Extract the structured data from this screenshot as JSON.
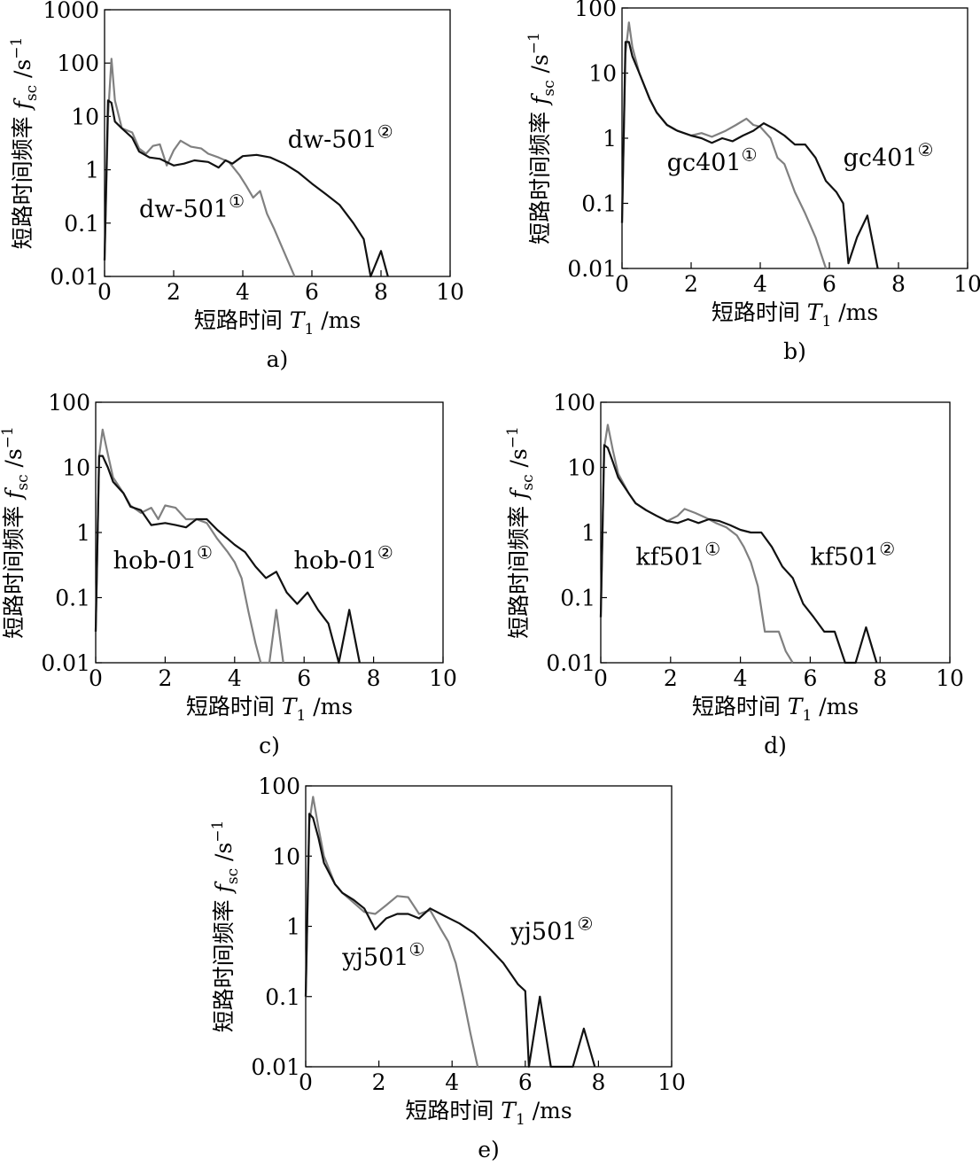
{
  "colors": {
    "series1": "#808080",
    "series2": "#111111",
    "axis": "#000000"
  },
  "chart_data": [
    {
      "type": "line",
      "caption": "a)",
      "xlabel_text": "短路时间",
      "xlabel_sym": "T",
      "xlabel_sub": "1",
      "xlabel_unit": "/ms",
      "ylabel_text": "短路时间频率",
      "ylabel_sym": "f",
      "ylabel_sub": "sc",
      "ylabel_unit": "/s",
      "ylabel_sup": "−1",
      "xlim": [
        0,
        10
      ],
      "ylim": [
        0.01,
        1000
      ],
      "ylog": true,
      "x_ticks": [
        0,
        2,
        4,
        6,
        8,
        10
      ],
      "x_tick_labels": [
        "0",
        "2",
        "4",
        "6",
        "8",
        "10"
      ],
      "y_ticks": [
        0.01,
        0.1,
        1,
        10,
        100,
        1000
      ],
      "y_tick_labels": [
        "0.01",
        "0.1",
        "1",
        "10",
        "100",
        "1000"
      ],
      "series": [
        {
          "name": "dw-501①",
          "label_text": "dw-501",
          "label_mark": "①",
          "label_at": [
            1.0,
            0.13
          ],
          "x": [
            0,
            0.1,
            0.2,
            0.3,
            0.5,
            0.8,
            1.0,
            1.2,
            1.4,
            1.6,
            1.8,
            2.0,
            2.2,
            2.5,
            2.8,
            3.0,
            3.3,
            3.6,
            3.9,
            4.1,
            4.3,
            4.5,
            4.7,
            4.9,
            5.1,
            5.3,
            5.5
          ],
          "y": [
            0.02,
            10,
            120,
            20,
            6,
            5,
            2.5,
            2,
            2.8,
            3,
            1.2,
            2.3,
            3.5,
            2.7,
            2.5,
            2,
            1.7,
            1.4,
            0.8,
            0.5,
            0.3,
            0.4,
            0.15,
            0.08,
            0.04,
            0.02,
            0.01
          ]
        },
        {
          "name": "dw-501②",
          "label_text": "dw-501",
          "label_mark": "②",
          "label_at": [
            5.3,
            2.6
          ],
          "x": [
            0,
            0.1,
            0.2,
            0.3,
            0.5,
            0.8,
            1.0,
            1.3,
            1.6,
            2.0,
            2.3,
            2.6,
            3.0,
            3.3,
            3.5,
            3.7,
            4.0,
            4.4,
            4.8,
            5.2,
            5.6,
            6.0,
            6.4,
            6.8,
            7.2,
            7.5,
            7.7,
            8.0,
            8.2
          ],
          "y": [
            0.02,
            20,
            18,
            8,
            6,
            4,
            2.2,
            1.7,
            1.6,
            1.2,
            1.3,
            1.5,
            1.4,
            1.1,
            1.5,
            1.3,
            1.8,
            1.9,
            1.7,
            1.3,
            0.9,
            0.55,
            0.35,
            0.22,
            0.1,
            0.05,
            0.01,
            0.03,
            0.01
          ]
        }
      ]
    },
    {
      "type": "line",
      "caption": "b)",
      "xlabel_text": "短路时间",
      "xlabel_sym": "T",
      "xlabel_sub": "1",
      "xlabel_unit": "/ms",
      "ylabel_text": "短路时间频率",
      "ylabel_sym": "f",
      "ylabel_sub": "sc",
      "ylabel_unit": "/s",
      "ylabel_sup": "−1",
      "xlim": [
        0,
        10
      ],
      "ylim": [
        0.01,
        100
      ],
      "ylog": true,
      "x_ticks": [
        0,
        2,
        4,
        6,
        8,
        10
      ],
      "x_tick_labels": [
        "0",
        "2",
        "4",
        "6",
        "8",
        "10"
      ],
      "y_ticks": [
        0.01,
        0.1,
        1,
        10,
        100
      ],
      "y_tick_labels": [
        "0.01",
        "0.1",
        "1",
        "10",
        "100"
      ],
      "series": [
        {
          "name": "gc401①",
          "label_text": "gc401",
          "label_mark": "①",
          "label_at": [
            1.3,
            0.32
          ],
          "x": [
            0,
            0.1,
            0.2,
            0.3,
            0.5,
            0.8,
            1.0,
            1.3,
            1.6,
            2.0,
            2.3,
            2.6,
            3.0,
            3.3,
            3.6,
            3.8,
            4.0,
            4.3,
            4.5,
            4.7,
            5.0,
            5.3,
            5.6,
            5.9
          ],
          "y": [
            0.05,
            20,
            60,
            25,
            10,
            4,
            2.5,
            1.6,
            1.3,
            1.1,
            1.2,
            1.05,
            1.3,
            1.6,
            2,
            1.6,
            1.5,
            1.0,
            0.5,
            0.4,
            0.15,
            0.07,
            0.03,
            0.01
          ]
        },
        {
          "name": "gc401②",
          "label_text": "gc401",
          "label_mark": "②",
          "label_at": [
            6.4,
            0.38
          ],
          "x": [
            0,
            0.1,
            0.2,
            0.3,
            0.5,
            0.8,
            1.0,
            1.3,
            1.6,
            2.0,
            2.3,
            2.6,
            2.9,
            3.2,
            3.5,
            3.8,
            4.1,
            4.4,
            4.7,
            5.0,
            5.3,
            5.6,
            5.9,
            6.2,
            6.4,
            6.55,
            6.8,
            7.1,
            7.4
          ],
          "y": [
            0.05,
            30,
            30,
            18,
            10,
            4,
            2.5,
            1.6,
            1.3,
            1.1,
            1.0,
            0.85,
            1.0,
            0.9,
            1.1,
            1.3,
            1.7,
            1.4,
            1.1,
            0.8,
            0.8,
            0.5,
            0.22,
            0.15,
            0.1,
            0.012,
            0.03,
            0.065,
            0.01
          ]
        }
      ]
    },
    {
      "type": "line",
      "caption": "c)",
      "xlabel_text": "短路时间",
      "xlabel_sym": "T",
      "xlabel_sub": "1",
      "xlabel_unit": "/ms",
      "ylabel_text": "短路时间频率",
      "ylabel_sym": "f",
      "ylabel_sub": "sc",
      "ylabel_unit": "/s",
      "ylabel_sup": "−1",
      "xlim": [
        0,
        10
      ],
      "ylim": [
        0.01,
        100
      ],
      "ylog": true,
      "x_ticks": [
        0,
        2,
        4,
        6,
        8,
        10
      ],
      "x_tick_labels": [
        "0",
        "2",
        "4",
        "6",
        "8",
        "10"
      ],
      "y_ticks": [
        0.01,
        0.1,
        1,
        10,
        100
      ],
      "y_tick_labels": [
        "0.01",
        "0.1",
        "1",
        "10",
        "100"
      ],
      "series": [
        {
          "name": "hob-01①",
          "label_text": "hob-01",
          "label_mark": "①",
          "label_at": [
            0.5,
            0.28
          ],
          "x": [
            0,
            0.1,
            0.2,
            0.35,
            0.5,
            0.8,
            1.0,
            1.3,
            1.6,
            1.8,
            2.0,
            2.3,
            2.6,
            2.9,
            3.2,
            3.5,
            3.8,
            4.0,
            4.2,
            4.4,
            4.6,
            4.75,
            5.0,
            5.2,
            5.4
          ],
          "y": [
            0.03,
            15,
            38,
            16,
            7,
            4,
            2.6,
            2,
            2.4,
            1.6,
            2.6,
            2.4,
            1.6,
            1.6,
            1.4,
            0.8,
            0.5,
            0.35,
            0.2,
            0.06,
            0.02,
            0.01,
            0.01,
            0.065,
            0.01
          ]
        },
        {
          "name": "hob-01②",
          "label_text": "hob-01",
          "label_mark": "②",
          "label_at": [
            5.7,
            0.28
          ],
          "x": [
            0,
            0.1,
            0.2,
            0.35,
            0.5,
            0.8,
            1.0,
            1.3,
            1.6,
            2.0,
            2.3,
            2.6,
            2.9,
            3.2,
            3.5,
            3.8,
            4.0,
            4.3,
            4.6,
            4.9,
            5.2,
            5.5,
            5.8,
            6.1,
            6.4,
            6.7,
            7.0,
            7.3,
            7.6
          ],
          "y": [
            0.03,
            15,
            15,
            10,
            6,
            4,
            2.5,
            2.2,
            1.3,
            1.4,
            1.3,
            1.2,
            1.6,
            1.6,
            1.1,
            0.8,
            0.65,
            0.5,
            0.3,
            0.2,
            0.25,
            0.12,
            0.08,
            0.12,
            0.065,
            0.04,
            0.01,
            0.065,
            0.01
          ]
        }
      ]
    },
    {
      "type": "line",
      "caption": "d)",
      "xlabel_text": "短路时间",
      "xlabel_sym": "T",
      "xlabel_sub": "1",
      "xlabel_unit": "/ms",
      "ylabel_text": "短路时间频率",
      "ylabel_sym": "f",
      "ylabel_sub": "sc",
      "ylabel_unit": "/s",
      "ylabel_sup": "−1",
      "xlim": [
        0,
        10
      ],
      "ylim": [
        0.01,
        100
      ],
      "ylog": true,
      "x_ticks": [
        0,
        2,
        4,
        6,
        8,
        10
      ],
      "x_tick_labels": [
        "0",
        "2",
        "4",
        "6",
        "8",
        "10"
      ],
      "y_ticks": [
        0.01,
        0.1,
        1,
        10,
        100
      ],
      "y_tick_labels": [
        "0.01",
        "0.1",
        "1",
        "10",
        "100"
      ],
      "series": [
        {
          "name": "kf501①",
          "label_text": "kf501",
          "label_mark": "①",
          "label_at": [
            1.0,
            0.32
          ],
          "x": [
            0,
            0.1,
            0.2,
            0.35,
            0.5,
            0.8,
            1.0,
            1.3,
            1.6,
            1.9,
            2.2,
            2.4,
            2.7,
            3.0,
            3.3,
            3.6,
            3.9,
            4.1,
            4.3,
            4.5,
            4.7,
            4.9,
            5.1,
            5.3,
            5.5
          ],
          "y": [
            0.05,
            20,
            45,
            18,
            8,
            4,
            2.8,
            2.2,
            1.8,
            1.5,
            1.8,
            2.3,
            2.0,
            1.7,
            1.4,
            1.2,
            0.9,
            0.6,
            0.35,
            0.15,
            0.03,
            0.03,
            0.03,
            0.015,
            0.01
          ]
        },
        {
          "name": "kf501②",
          "label_text": "kf501",
          "label_mark": "②",
          "label_at": [
            6.0,
            0.32
          ],
          "x": [
            0,
            0.1,
            0.2,
            0.35,
            0.5,
            0.8,
            1.0,
            1.3,
            1.6,
            1.9,
            2.2,
            2.5,
            2.8,
            3.1,
            3.4,
            3.7,
            4.0,
            4.3,
            4.6,
            4.9,
            5.2,
            5.5,
            5.8,
            6.1,
            6.4,
            6.7,
            7.0,
            7.3,
            7.6,
            7.9
          ],
          "y": [
            0.05,
            22,
            20,
            12,
            7,
            4,
            2.8,
            2.2,
            1.8,
            1.5,
            1.4,
            1.6,
            1.4,
            1.6,
            1.5,
            1.3,
            1.1,
            1.0,
            1.0,
            0.6,
            0.3,
            0.2,
            0.08,
            0.05,
            0.03,
            0.03,
            0.01,
            0.01,
            0.035,
            0.01
          ]
        }
      ]
    },
    {
      "type": "line",
      "caption": "e)",
      "xlabel_text": "短路时间",
      "xlabel_sym": "T",
      "xlabel_sub": "1",
      "xlabel_unit": "/ms",
      "ylabel_text": "短路时间频率",
      "ylabel_sym": "f",
      "ylabel_sub": "sc",
      "ylabel_unit": "/s",
      "ylabel_sup": "−1",
      "xlim": [
        0,
        10
      ],
      "ylim": [
        0.01,
        100
      ],
      "ylog": true,
      "x_ticks": [
        0,
        2,
        4,
        6,
        8,
        10
      ],
      "x_tick_labels": [
        "0",
        "2",
        "4",
        "6",
        "8",
        "10"
      ],
      "y_ticks": [
        0.01,
        0.1,
        1,
        10,
        100
      ],
      "y_tick_labels": [
        "0.01",
        "0.1",
        "1",
        "10",
        "100"
      ],
      "series": [
        {
          "name": "yj501①",
          "label_text": "yj501",
          "label_mark": "①",
          "label_at": [
            1.0,
            0.28
          ],
          "x": [
            0,
            0.1,
            0.2,
            0.35,
            0.5,
            0.8,
            1.0,
            1.3,
            1.6,
            1.9,
            2.2,
            2.5,
            2.8,
            3.1,
            3.4,
            3.7,
            3.9,
            4.1,
            4.3,
            4.5,
            4.7
          ],
          "y": [
            0.1,
            30,
            70,
            25,
            10,
            4,
            3,
            2.2,
            1.6,
            1.5,
            2.0,
            2.7,
            2.6,
            1.5,
            1.7,
            0.9,
            0.6,
            0.3,
            0.1,
            0.03,
            0.01
          ]
        },
        {
          "name": "yj501②",
          "label_text": "yj501",
          "label_mark": "②",
          "label_at": [
            5.6,
            0.65
          ],
          "x": [
            0,
            0.1,
            0.2,
            0.35,
            0.5,
            0.8,
            1.0,
            1.3,
            1.6,
            1.9,
            2.2,
            2.5,
            2.8,
            3.1,
            3.4,
            3.8,
            4.2,
            4.6,
            5.0,
            5.4,
            5.8,
            6.0,
            6.1,
            6.4,
            6.7,
            7.0,
            7.3,
            7.6,
            7.9
          ],
          "y": [
            0.1,
            40,
            35,
            18,
            8,
            4,
            3,
            2.4,
            1.8,
            0.9,
            1.3,
            1.5,
            1.5,
            1.3,
            1.8,
            1.4,
            1.1,
            0.8,
            0.5,
            0.3,
            0.15,
            0.12,
            0.01,
            0.1,
            0.01,
            0.01,
            0.01,
            0.035,
            0.01
          ]
        }
      ]
    }
  ]
}
